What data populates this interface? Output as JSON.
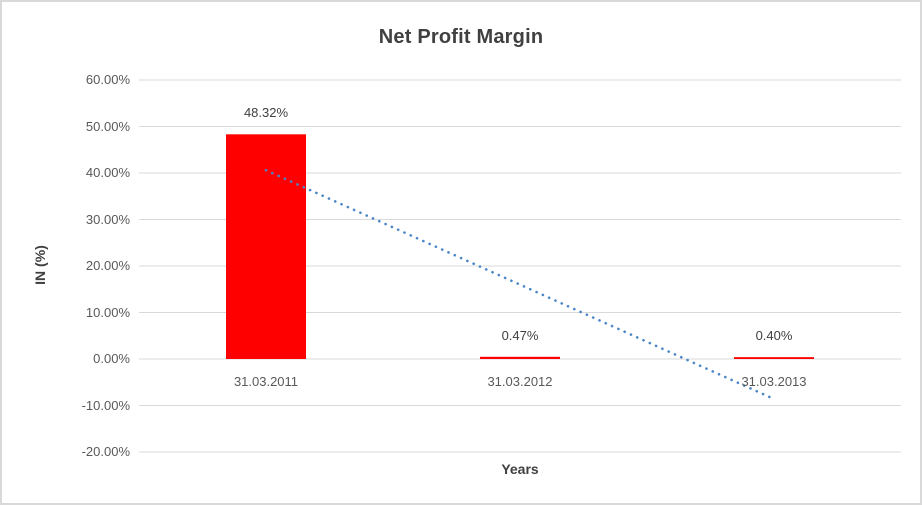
{
  "chart_data": {
    "type": "bar",
    "title": "Net Profit Margin",
    "xlabel": "Years",
    "ylabel": "IN (%)",
    "categories": [
      "31.03.2011",
      "31.03.2012",
      "31.03.2013"
    ],
    "values": [
      48.32,
      0.47,
      0.4
    ],
    "data_labels": [
      "48.32%",
      "0.47%",
      "0.40%"
    ],
    "y_ticks": [
      {
        "value": 60,
        "label": "60.00%"
      },
      {
        "value": 50,
        "label": "50.00%"
      },
      {
        "value": 40,
        "label": "40.00%"
      },
      {
        "value": 30,
        "label": "30.00%"
      },
      {
        "value": 20,
        "label": "20.00%"
      },
      {
        "value": 10,
        "label": "10.00%"
      },
      {
        "value": 0,
        "label": "0.00%"
      },
      {
        "value": -10,
        "label": "-10.00%"
      },
      {
        "value": -20,
        "label": "-20.00%"
      }
    ],
    "ylim": [
      -20,
      60
    ],
    "grid": true,
    "legend": "none",
    "bar_color": "#ff0000",
    "gridline_color": "#d9d9d9",
    "trendline": {
      "type": "linear",
      "style": "dotted",
      "color": "#4a86c8",
      "start": {
        "category_index": 0,
        "value": 40.6
      },
      "end": {
        "category_index": 2,
        "value": -8.6
      }
    },
    "colors": {
      "title": "#404040",
      "tick_label": "#595959",
      "data_label": "#404040",
      "axis_title": "#404040",
      "border": "#d9d9d9"
    }
  }
}
